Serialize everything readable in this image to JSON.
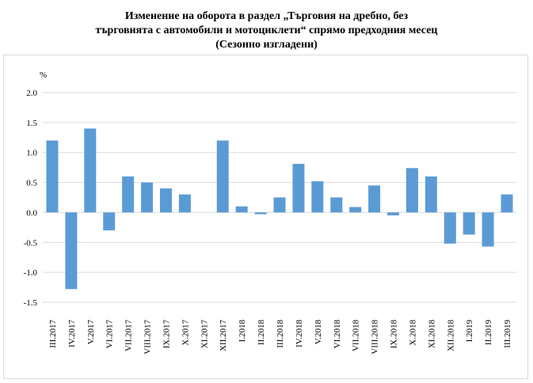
{
  "chart_data": {
    "type": "bar",
    "title": [
      "Изменение на оборота в раздел „Търговия на дребно, без",
      "търговията с автомобили и мотоциклети“ спрямо предходния месец",
      "(Сезонно изгладени)"
    ],
    "ylabel": "%",
    "ylim": [
      -1.5,
      2.0
    ],
    "yticks": [
      2.0,
      1.5,
      1.0,
      0.5,
      0.0,
      -0.5,
      -1.0,
      -1.5
    ],
    "ytick_labels": [
      "2.0",
      "1.5",
      "1.0",
      "0.5",
      "0.0",
      "-0.5",
      "-1.0",
      "-1.5"
    ],
    "grid": true,
    "bar_color": "#5b9bd5",
    "categories": [
      "III.2017",
      "IV.2017",
      "V.2017",
      "VI.2017",
      "VII.2017",
      "VIII.2017",
      "IX.2017",
      "X.2017",
      "XI.2017",
      "XII.2017",
      "I.2018",
      "II.2018",
      "III.2018",
      "IV.2018",
      "V.2018",
      "VI.2018",
      "VII.2018",
      "VIII.2018",
      "IX.2018",
      "X.2018",
      "XI.2018",
      "XII.2018",
      "I.2019",
      "II.2019",
      "III.2019"
    ],
    "values": [
      1.2,
      -1.28,
      1.4,
      -0.3,
      0.6,
      0.5,
      0.4,
      0.3,
      0.0,
      1.2,
      0.1,
      -0.03,
      0.25,
      0.81,
      0.52,
      0.25,
      0.09,
      0.45,
      -0.05,
      0.74,
      0.6,
      -0.52,
      -0.37,
      -0.57,
      0.3
    ]
  }
}
